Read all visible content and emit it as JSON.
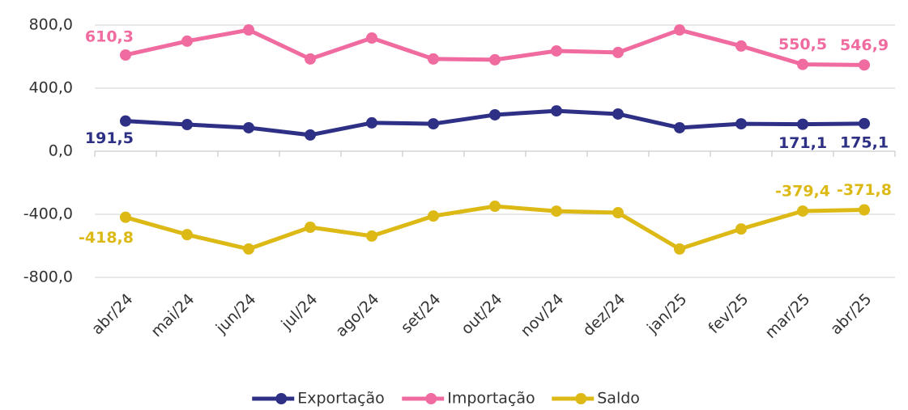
{
  "chart_data": {
    "type": "line",
    "categories": [
      "abr/24",
      "mai/24",
      "jun/24",
      "jul/24",
      "ago/24",
      "set/24",
      "out/24",
      "nov/24",
      "dez/24",
      "jan/25",
      "fev/25",
      "mar/25",
      "abr/25"
    ],
    "series": [
      {
        "name": "Exportação",
        "color": "#2e3085",
        "values": [
          191.5,
          169,
          149,
          103,
          180,
          174,
          231,
          256,
          236,
          149,
          174,
          171.1,
          175.1
        ],
        "value_labels": [
          "191,5",
          null,
          null,
          null,
          null,
          null,
          null,
          null,
          null,
          null,
          null,
          "171,1",
          "175,1"
        ]
      },
      {
        "name": "Importação",
        "color": "#f06b9f",
        "values": [
          610.3,
          698,
          769,
          585,
          718,
          585,
          580,
          636,
          626,
          769,
          667,
          550.5,
          546.9
        ],
        "value_labels": [
          "610,3",
          null,
          null,
          null,
          null,
          null,
          null,
          null,
          null,
          null,
          null,
          "550,5",
          "546,9"
        ]
      },
      {
        "name": "Saldo",
        "color": "#dcb915",
        "values": [
          -418.8,
          -529,
          -620,
          -482,
          -538,
          -411,
          -349,
          -380,
          -390,
          -620,
          -493,
          -379.4,
          -371.8
        ],
        "value_labels": [
          "-418,8",
          null,
          null,
          null,
          null,
          null,
          null,
          null,
          null,
          null,
          null,
          "-379,4",
          "-371,8"
        ]
      }
    ],
    "ylim": [
      -800,
      800
    ],
    "yticks": [
      {
        "value": -800,
        "label": "-800,0"
      },
      {
        "value": -400,
        "label": "-400,0"
      },
      {
        "value": 0,
        "label": "0,0"
      },
      {
        "value": 400,
        "label": "400,0"
      },
      {
        "value": 800,
        "label": "800,0"
      }
    ],
    "grid": true,
    "legend": "bottom"
  }
}
